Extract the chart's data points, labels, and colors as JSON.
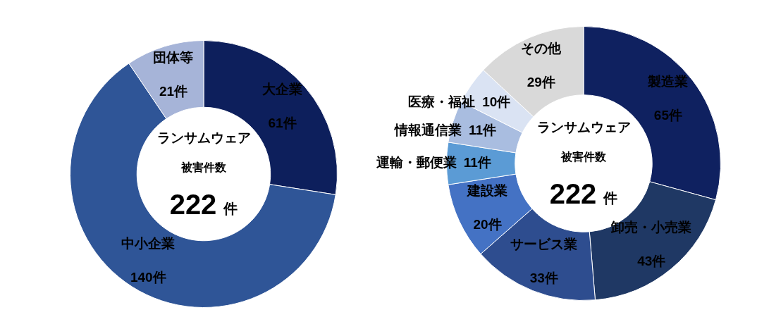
{
  "chart_data": [
    {
      "type": "donut",
      "categories": [
        "大企業",
        "中小企業",
        "団体等"
      ],
      "values": [
        61,
        140,
        21
      ],
      "colors": [
        "#0d1f5c",
        "#2f5597",
        "#a6b4d8"
      ],
      "value_labels": [
        "61件",
        "140件",
        "21件"
      ],
      "legend": false,
      "annotations": [
        "ランサムウェア",
        "被害件数",
        "222 件"
      ]
    },
    {
      "type": "donut",
      "categories": [
        "製造業",
        "卸売・小売業",
        "サービス業",
        "建設業",
        "運輸・郵便業",
        "情報通信業",
        "医療・福祉",
        "その他"
      ],
      "values": [
        65,
        43,
        33,
        20,
        11,
        11,
        10,
        29
      ],
      "colors": [
        "#0f2160",
        "#1f3864",
        "#2e4d8f",
        "#4472c4",
        "#5b9bd5",
        "#a9bde0",
        "#dae3f3",
        "#d9d9d9"
      ],
      "value_labels": [
        "65件",
        "43件",
        "33件",
        "20件",
        "11件",
        "11件",
        "10件",
        "29件"
      ],
      "legend": false,
      "annotations": [
        "ランサムウェア",
        "被害件数",
        "222 件"
      ]
    }
  ]
}
